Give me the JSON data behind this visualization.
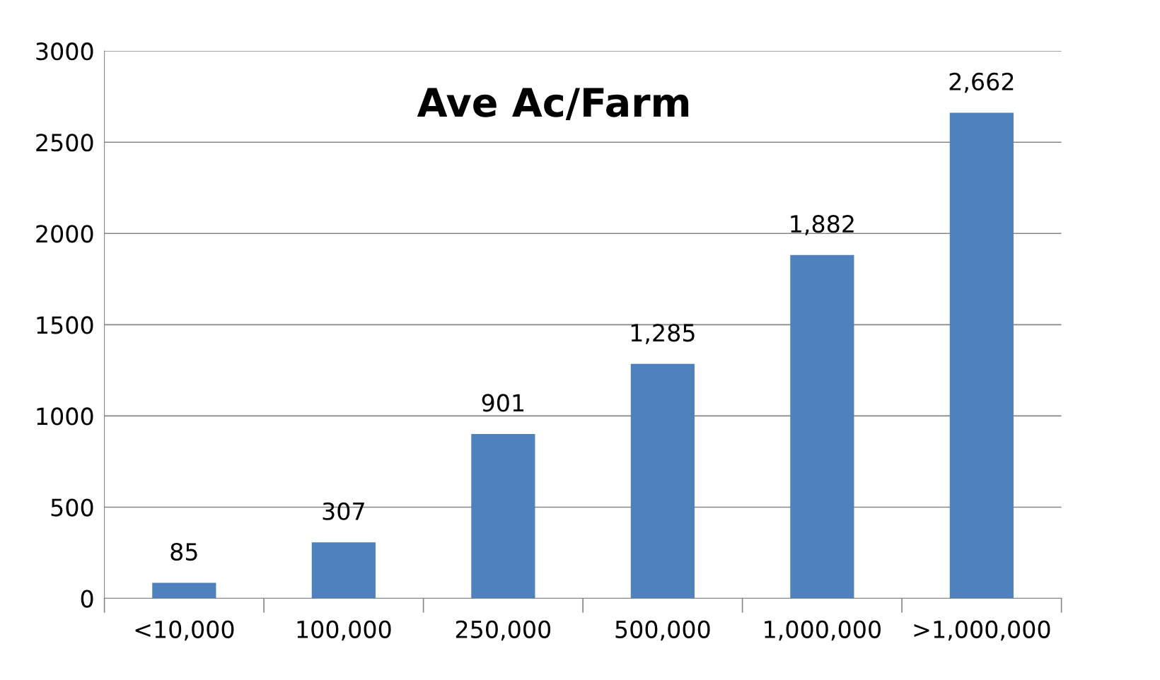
{
  "chart_data": {
    "type": "bar",
    "title": "Ave Ac/Farm",
    "categories": [
      "<10,000",
      "100,000",
      "250,000",
      "500,000",
      "1,000,000",
      ">1,000,000"
    ],
    "values": [
      85,
      307,
      901,
      1285,
      1882,
      2662
    ],
    "value_labels": [
      "85",
      "307",
      "901",
      "1,285",
      "1,882",
      "2,662"
    ],
    "color": "#4f81bd",
    "ylim": [
      0,
      3000
    ],
    "yticks": [
      0,
      500,
      1000,
      1500,
      2000,
      2500,
      3000
    ],
    "grid": "y",
    "legend": false
  }
}
